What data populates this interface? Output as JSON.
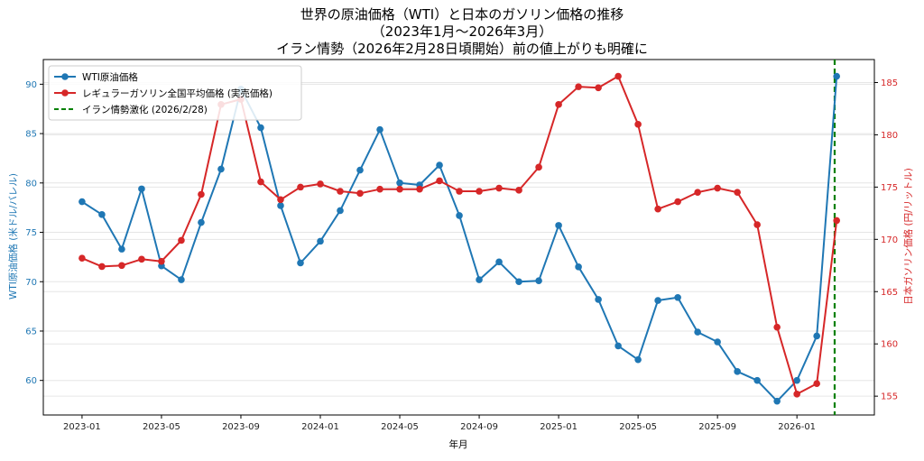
{
  "chart_data": {
    "type": "line",
    "title_lines": [
      "世界の原油価格（WTI）と日本のガソリン価格の推移",
      "（2023年1月～2026年3月）",
      "イラン情勢（2026年2月28日頃開始）前の値上がりも明確に"
    ],
    "xlabel": "年月",
    "ylabel_left": "WTI原油価格 (米ドル/バレル)",
    "ylabel_right": "日本ガソリン価格 (円/リットル)",
    "x_ticks": [
      "2023-01",
      "2023-05",
      "2023-09",
      "2024-01",
      "2024-05",
      "2024-09",
      "2025-01",
      "2025-05",
      "2025-09",
      "2026-01"
    ],
    "ylim_left": [
      56.5,
      92.5
    ],
    "y_ticks_left": [
      60,
      65,
      70,
      75,
      80,
      85,
      90
    ],
    "ylim_right": [
      153.2,
      187.2
    ],
    "y_ticks_right": [
      155,
      160,
      165,
      170,
      175,
      180,
      185
    ],
    "grid": true,
    "legend_position": "top-left",
    "x": [
      "2023-01",
      "2023-02",
      "2023-03",
      "2023-04",
      "2023-05",
      "2023-06",
      "2023-07",
      "2023-08",
      "2023-09",
      "2023-10",
      "2023-11",
      "2023-12",
      "2024-01",
      "2024-02",
      "2024-03",
      "2024-04",
      "2024-05",
      "2024-06",
      "2024-07",
      "2024-08",
      "2024-09",
      "2024-10",
      "2024-11",
      "2024-12",
      "2025-01",
      "2025-02",
      "2025-03",
      "2025-04",
      "2025-05",
      "2025-06",
      "2025-07",
      "2025-08",
      "2025-09",
      "2025-10",
      "2025-11",
      "2025-12",
      "2026-01",
      "2026-02",
      "2026-03"
    ],
    "series": [
      {
        "name": "WTI原油価格",
        "axis": "left",
        "color": "#1f77b4",
        "values": [
          78.1,
          76.8,
          73.3,
          79.4,
          71.6,
          70.2,
          76.0,
          81.4,
          89.5,
          85.6,
          77.7,
          71.9,
          74.1,
          77.2,
          81.3,
          85.4,
          80.0,
          79.8,
          81.8,
          76.7,
          70.2,
          72.0,
          70.0,
          70.1,
          75.7,
          71.5,
          68.2,
          63.5,
          62.1,
          68.1,
          68.4,
          64.9,
          63.9,
          60.9,
          60.0,
          57.9,
          60.0,
          64.5,
          90.8
        ]
      },
      {
        "name": "レギュラーガソリン全国平均価格 (実売価格)",
        "axis": "right",
        "color": "#d62728",
        "values": [
          168.2,
          167.4,
          167.5,
          168.1,
          167.9,
          169.9,
          174.3,
          182.9,
          183.4,
          175.5,
          173.8,
          175.0,
          175.3,
          174.6,
          174.4,
          174.8,
          174.8,
          174.8,
          175.6,
          174.6,
          174.6,
          174.9,
          174.7,
          176.9,
          182.9,
          184.6,
          184.5,
          185.6,
          181.0,
          172.9,
          173.6,
          174.5,
          174.9,
          174.5,
          171.4,
          161.6,
          155.2,
          156.2,
          171.8
        ]
      }
    ],
    "event_line": {
      "label": "イラン情勢激化 (2026/2/28)",
      "date": "2026-02-28",
      "color": "#008000"
    }
  }
}
